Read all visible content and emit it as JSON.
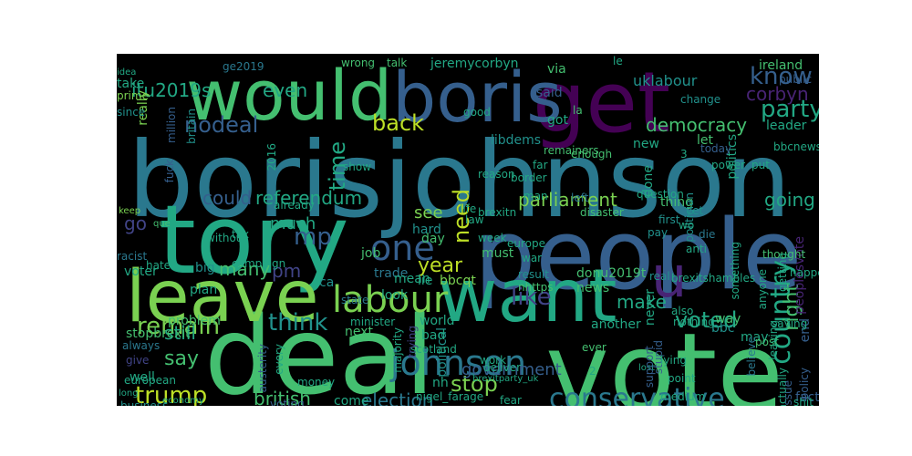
{
  "palette": {
    "background": "#000000",
    "colors": [
      "#440154",
      "#482475",
      "#414487",
      "#355f8d",
      "#2a788e",
      "#21918c",
      "#22a884",
      "#44bf70",
      "#7ad151",
      "#bddf26",
      "#fde725"
    ]
  },
  "words": [
    "borisjohnson",
    "people",
    "deal",
    "vote",
    "tory",
    "would",
    "get",
    "boris",
    "leave",
    "want",
    "u",
    "labour",
    "johnson",
    "one",
    "conservative",
    "country",
    "remain",
    "mp",
    "think",
    "like",
    "trump",
    "party",
    "know",
    "time",
    "nodeal",
    "back",
    "need",
    "stop",
    "year",
    "say",
    "voted",
    "right",
    "could",
    "referendum",
    "parliament",
    "democracy",
    "going",
    "itu2019s",
    "even",
    "corbyn",
    "british",
    "election",
    "pm",
    "make",
    "still",
    "many",
    "government",
    "go",
    "see",
    "much",
    "jeremycorbyn",
    "uklabour",
    "libdems",
    "ireland",
    "leader",
    "got",
    "said",
    "via",
    "let",
    "new",
    "never",
    "politics",
    "done",
    "thing",
    "must",
    "day",
    "job",
    "trade",
    "lie",
    "world",
    "bbcqt",
    "look",
    "mean",
    "donu2019t",
    "news",
    "another",
    "may",
    "way",
    "bbc",
    "peoplesvote",
    "fact",
    "end",
    "nh",
    "political",
    "bad",
    "come",
    "next",
    "ca",
    "plan",
    "voter",
    "well",
    "problem",
    "take",
    "really",
    "stopbrexit",
    "hard",
    "wrong",
    "talk",
    "le",
    "ge2019",
    "idea",
    "prime",
    "since",
    "million",
    "britain",
    "fuck",
    "keep",
    "que",
    "racist",
    "hate",
    "big",
    "campaign",
    "state",
    "minister",
    "scotland",
    "majority",
    "trying",
    "austerity",
    "every",
    "money",
    "european",
    "always",
    "give",
    "long",
    "business",
    "economy",
    "voting",
    "nigel_farage",
    "fear",
    "brexitparty_uk",
    "deliver",
    "lost",
    "support",
    "medium",
    "believe",
    "actually",
    "issue",
    "policy",
    "post",
    "leaving",
    "saying",
    "anyone",
    "stupid",
    "lying",
    "point",
    "something",
    "thought",
    "getting",
    "happen",
    "public",
    "put",
    "change",
    "today",
    "power",
    "politician",
    "question",
    "yet",
    "first",
    "pay",
    "wo",
    "anti",
    "die",
    "brexitshambles",
    "real",
    "result",
    "nhttps",
    "war",
    "europe",
    "week",
    "law",
    "life",
    "brexitn",
    "man",
    "border",
    "far",
    "reason",
    "disaster",
    "left",
    "enough",
    "remainers",
    "la",
    "tax",
    "without",
    "already",
    "show",
    "2016",
    "shit",
    "also",
    "nothing",
    "ever",
    "bbcnews",
    "tell",
    "3",
    "2",
    "work",
    "good"
  ]
}
